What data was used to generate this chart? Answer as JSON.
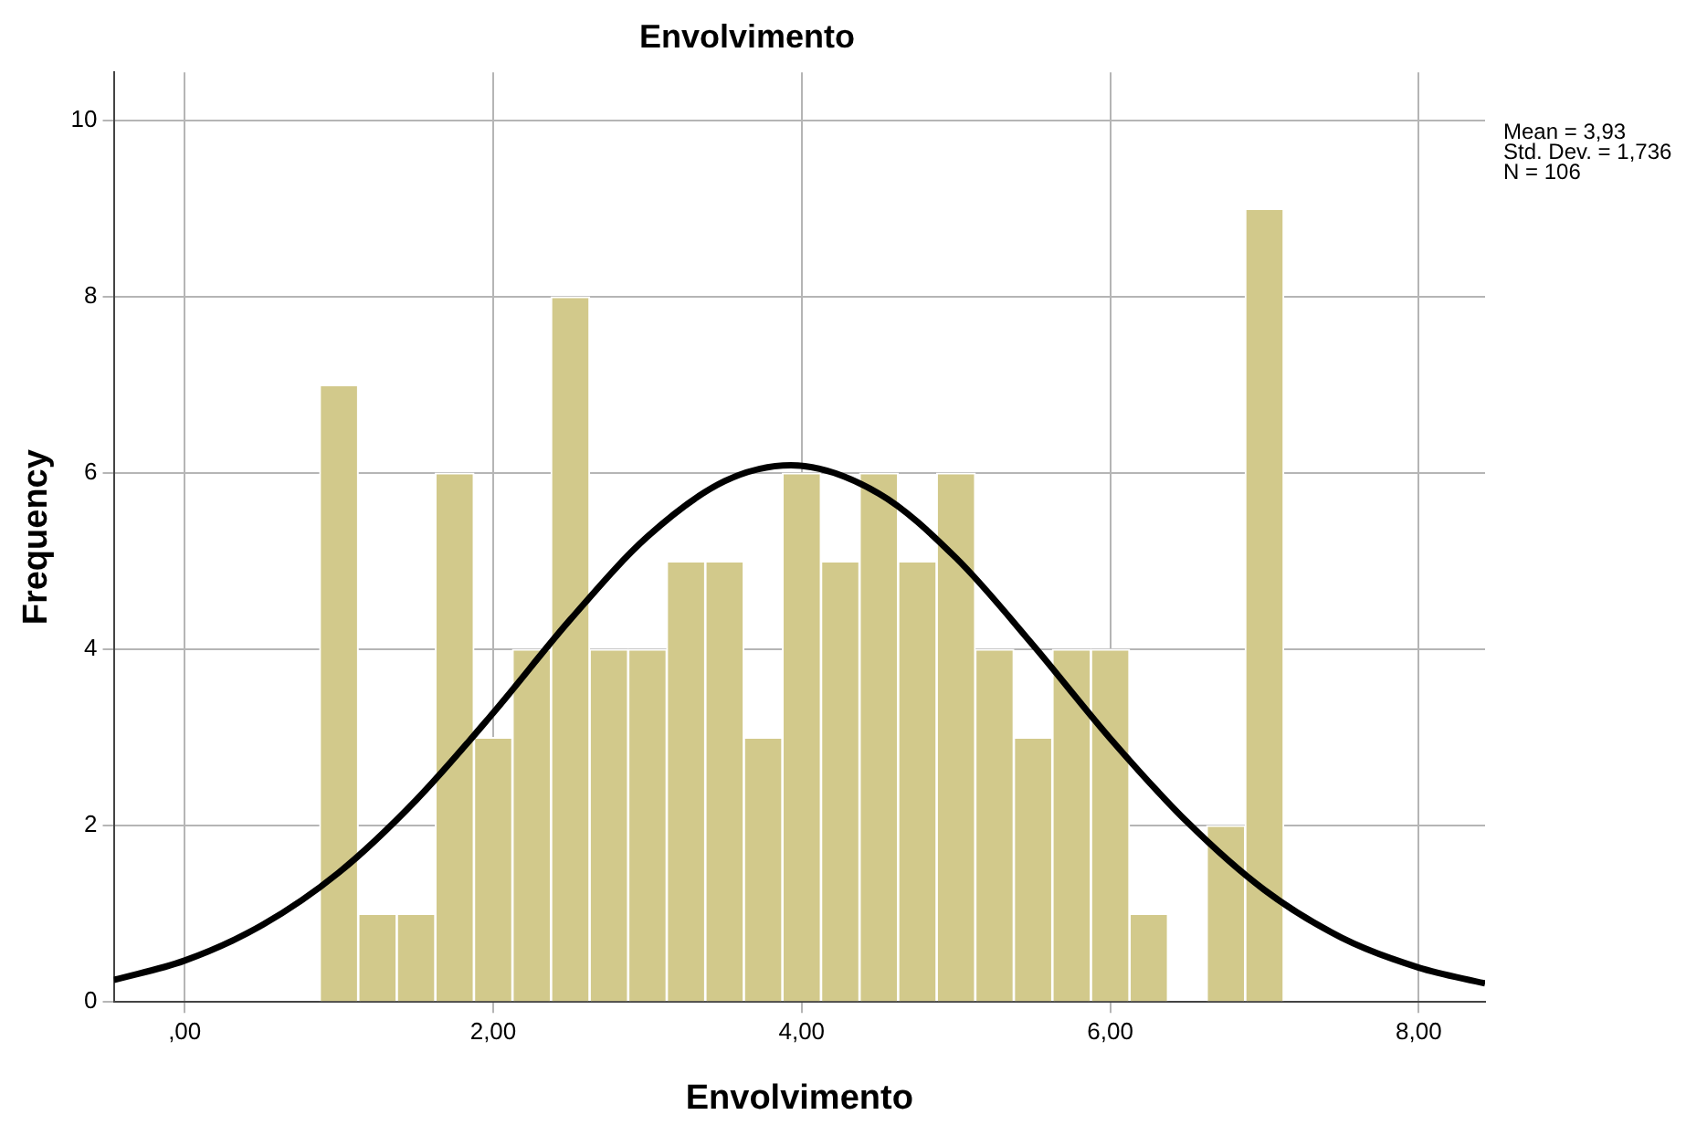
{
  "chart_data": {
    "type": "histogram",
    "title": "Envolvimento",
    "xlabel": "Envolvimento",
    "ylabel": "Frequency",
    "bins": [
      0.875,
      1.125,
      1.375,
      1.625,
      1.875,
      2.125,
      2.375,
      2.625,
      2.875,
      3.125,
      3.375,
      3.625,
      3.875,
      4.125,
      4.375,
      4.625,
      4.875,
      5.125,
      5.375,
      5.625,
      5.875,
      6.125,
      6.375,
      6.625,
      6.875,
      7.125
    ],
    "values": [
      7,
      1,
      1,
      6,
      3,
      4,
      8,
      4,
      4,
      5,
      5,
      3,
      6,
      5,
      6,
      5,
      6,
      4,
      3,
      4,
      4,
      1,
      0,
      2,
      9
    ],
    "color": "#d2c98b",
    "series": [
      {
        "type": "line",
        "color": "#000000",
        "x": [
          -0.46,
          0,
          0.5,
          1,
          1.5,
          2,
          2.5,
          3,
          3.5,
          3.93,
          4.5,
          5,
          5.5,
          6,
          6.5,
          7,
          7.5,
          8,
          8.43
        ],
        "values": [
          0.25,
          0.47,
          0.87,
          1.47,
          2.29,
          3.28,
          4.34,
          5.28,
          5.91,
          6.09,
          5.77,
          5.04,
          4.05,
          2.99,
          2.04,
          1.27,
          0.73,
          0.39,
          0.21
        ]
      }
    ],
    "marker": "none",
    "xlim": [
      -0.46,
      8.43
    ],
    "xticks": [
      {
        "value": 0,
        "label": ",00"
      },
      {
        "value": 2,
        "label": "2,00"
      },
      {
        "value": 4,
        "label": "4,00"
      },
      {
        "value": 6,
        "label": "6,00"
      },
      {
        "value": 8,
        "label": "8,00"
      }
    ],
    "ylim": [
      0,
      10.55
    ],
    "yticks": [
      0,
      2,
      4,
      6,
      8,
      10
    ],
    "grid": true,
    "legend": false,
    "annotations": [
      "Mean = 3,93",
      "Std. Dev. = 1,736",
      "N = 106"
    ]
  }
}
